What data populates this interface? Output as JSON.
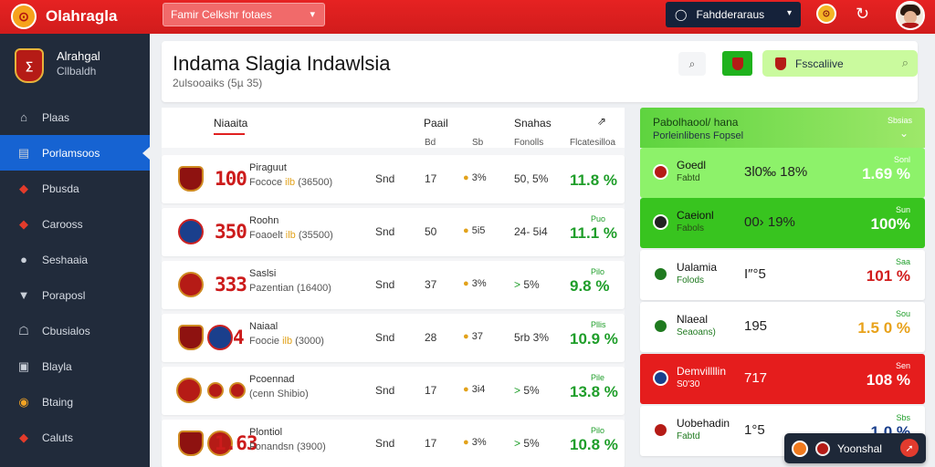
{
  "topbar": {
    "logo_glyph": "⊙",
    "app_title": "Olahragla",
    "select_label": "Famir Celkshr fotaes",
    "user_label": "Fahdderaraus",
    "badge_glyph": "⊙",
    "refresh_icon": "refresh-icon",
    "colors": {
      "primary": "#e62222",
      "dark": "#15223a"
    }
  },
  "sidebar": {
    "brand_name": "Alrahgal",
    "brand_sub": "Cllbaldh",
    "brand_glyph": "∑",
    "items": [
      {
        "label": "Plaas",
        "icon": "home-icon",
        "glyph": "⌂",
        "active": false
      },
      {
        "label": "Porlamsoos",
        "icon": "chart-icon",
        "glyph": "▤",
        "active": true
      },
      {
        "label": "Pbusda",
        "icon": "shield-icon",
        "glyph": "◆",
        "active": false
      },
      {
        "label": "Carooss",
        "icon": "crest-icon",
        "glyph": "◆",
        "active": false
      },
      {
        "label": "Seshaaia",
        "icon": "user-icon",
        "glyph": "●",
        "active": false
      },
      {
        "label": "Poraposl",
        "icon": "badge-icon",
        "glyph": "▼",
        "active": false
      },
      {
        "label": "Cbusialos",
        "icon": "bank-icon",
        "glyph": "☖",
        "active": false
      },
      {
        "label": "Blayla",
        "icon": "flag-icon",
        "glyph": "▣",
        "active": false
      },
      {
        "label": "Btaing",
        "icon": "medal-icon",
        "glyph": "◉",
        "active": false
      },
      {
        "label": "Caluts",
        "icon": "trophy-icon",
        "glyph": "◆",
        "active": false
      }
    ]
  },
  "header": {
    "title": "Indama Slagia Indawlsia",
    "subtitle": "2ulsooaiks (5µ 35)",
    "action_glyph": "⌕",
    "search_placeholder": "Fsscaliive",
    "search_glyph": "⌕"
  },
  "table": {
    "tab_label": "Niaaita",
    "col_headers": [
      "Paail",
      "Snahas",
      "⇗"
    ],
    "sub_headers": [
      "Bd",
      "Sb",
      "Fonolls",
      "Flcatesilloa"
    ],
    "rows": [
      {
        "num": "100",
        "name": "Piraguut",
        "meta_pre": "Fococe",
        "meta_hl": "ilb",
        "meta_post": "(36500)",
        "c1": "Snd",
        "c2": "17",
        "c3_mark": "●",
        "c3": "3%",
        "c4_mark": "",
        "c4": "50, 5%",
        "small": "",
        "value": "11.8 %"
      },
      {
        "num": "350",
        "name": "Roohn",
        "meta_pre": "Foaoelt",
        "meta_hl": "ilb",
        "meta_post": "(35500)",
        "c1": "Snd",
        "c2": "50",
        "c3_mark": "●",
        "c3": "5i5",
        "c4_mark": "",
        "c4": "24- 5i4",
        "small": "Puo",
        "value": "11.1 %"
      },
      {
        "num": "333",
        "name": "Saslsi",
        "meta_pre": "Pazentian",
        "meta_hl": "",
        "meta_post": "(16400)",
        "c1": "Snd",
        "c2": "37",
        "c3_mark": "●",
        "c3": "3%",
        "c4_mark": ">",
        "c4": "5%",
        "small": "Pilo",
        "value": "9.8 %"
      },
      {
        "num": "4",
        "name": "Naiaal",
        "meta_pre": "Foocie",
        "meta_hl": "ilb",
        "meta_post": "(3000)",
        "c1": "Snd",
        "c2": "28",
        "c3_mark": "●",
        "c3": "37",
        "c4_mark": "",
        "c4": "5rb 3%",
        "small": "Pllis",
        "value": "10.9 %"
      },
      {
        "num": "",
        "name": "Pcoennad",
        "meta_pre": "(cenn Shibio)",
        "meta_hl": "",
        "meta_post": "",
        "c1": "Snd",
        "c2": "17",
        "c3_mark": "●",
        "c3": "3i4",
        "c4_mark": ">",
        "c4": "5%",
        "small": "Pile",
        "value": "13.8 %"
      },
      {
        "num": "1.63",
        "name": "Plontiol",
        "meta_pre": "Fonandsn",
        "meta_hl": "",
        "meta_post": "(3900)",
        "c1": "Snd",
        "c2": "17",
        "c3_mark": "●",
        "c3": "3%",
        "c4_mark": ">",
        "c4": "5%",
        "small": "Pilo",
        "value": "10.8 %"
      }
    ]
  },
  "side_panel": {
    "title": "Pabolhaool/ hana",
    "subtitle": "Porleinlibens Fopsel",
    "right_label": "Sbsias",
    "rows": [
      {
        "name": "Goedl",
        "meta": "Fabtd",
        "mid": "3l0‰ 18%",
        "label": "Sonl",
        "pct": "1.69 %",
        "bg": "#8df26a",
        "pct_color": "#ffffff",
        "label_color": "#ffffff",
        "icon_color": "#b51b16"
      },
      {
        "name": "Caeionl",
        "meta": "Fabols",
        "mid": "00› 19%",
        "label": "Sun",
        "pct": "100%",
        "bg": "#38c41f",
        "pct_color": "#ffffff",
        "label_color": "#ffffff",
        "icon_color": "#222222"
      },
      {
        "name": "Ualamia",
        "meta": "Folods",
        "mid": "I″°5",
        "label": "Saa",
        "pct": "101 %",
        "bg": "#ffffff",
        "pct_color": "#d11c1c",
        "label_color": "#1f9e2a",
        "icon_color": "#1f7a1f"
      },
      {
        "name": "Nlaeal",
        "meta": "Seaoans)",
        "mid": "195",
        "label": "Sou",
        "pct": "1.5 0 %",
        "bg": "#ffffff",
        "pct_color": "#e8a21b",
        "label_color": "#1f9e2a",
        "icon_color": "#1f7a1f"
      },
      {
        "name": "Demvillllin",
        "meta": "S0'30",
        "mid": "717",
        "label": "Sen",
        "pct": "108 %",
        "bg": "#e51d1d",
        "pct_color": "#ffffff",
        "label_color": "#ffffff",
        "icon_color": "#1a3f8c"
      },
      {
        "name": "Uobehadin",
        "meta": "Fabtd",
        "mid": "1°5",
        "label": "Sbs",
        "pct": "1.0 %",
        "bg": "#ffffff",
        "pct_color": "#1a3f8c",
        "label_color": "#1f9e2a",
        "icon_color": "#b51b16"
      }
    ]
  },
  "bottom_pill": {
    "label": "Yoonshal",
    "go_glyph": "➚"
  }
}
